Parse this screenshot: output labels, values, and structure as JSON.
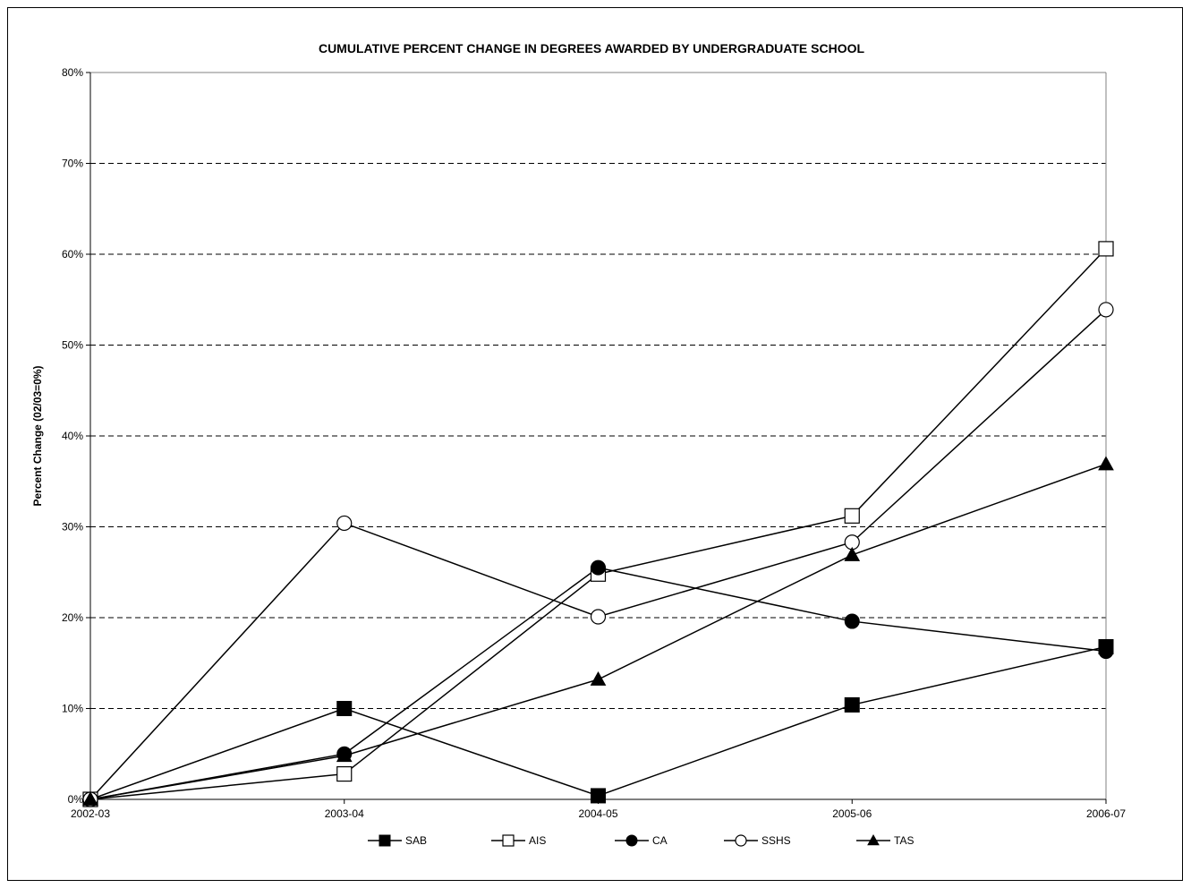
{
  "chart_data": {
    "type": "line",
    "title": "CUMULATIVE PERCENT CHANGE IN DEGREES AWARDED BY UNDERGRADUATE SCHOOL",
    "xlabel": "",
    "ylabel": "Percent Change (02/03=0%)",
    "categories": [
      "2002-03",
      "2003-04",
      "2004-05",
      "2005-06",
      "2006-07"
    ],
    "ylim": [
      0,
      80
    ],
    "yticks": [
      "0%",
      "10%",
      "20%",
      "30%",
      "40%",
      "50%",
      "60%",
      "70%",
      "80%"
    ],
    "grid": "horizontal dashed",
    "legend_position": "bottom",
    "series": [
      {
        "name": "SAB",
        "marker": "filled-square",
        "values": [
          0,
          10.0,
          0.4,
          10.4,
          16.8
        ]
      },
      {
        "name": "AIS",
        "marker": "open-square",
        "values": [
          0,
          2.8,
          24.8,
          31.2,
          60.6
        ]
      },
      {
        "name": "CA",
        "marker": "filled-circle",
        "values": [
          0,
          5.0,
          25.5,
          19.6,
          16.3
        ]
      },
      {
        "name": "SSHS",
        "marker": "open-circle",
        "values": [
          0,
          30.4,
          20.1,
          28.3,
          53.9
        ]
      },
      {
        "name": "TAS",
        "marker": "filled-triangle",
        "values": [
          0,
          4.8,
          13.2,
          26.9,
          36.9
        ]
      }
    ]
  }
}
